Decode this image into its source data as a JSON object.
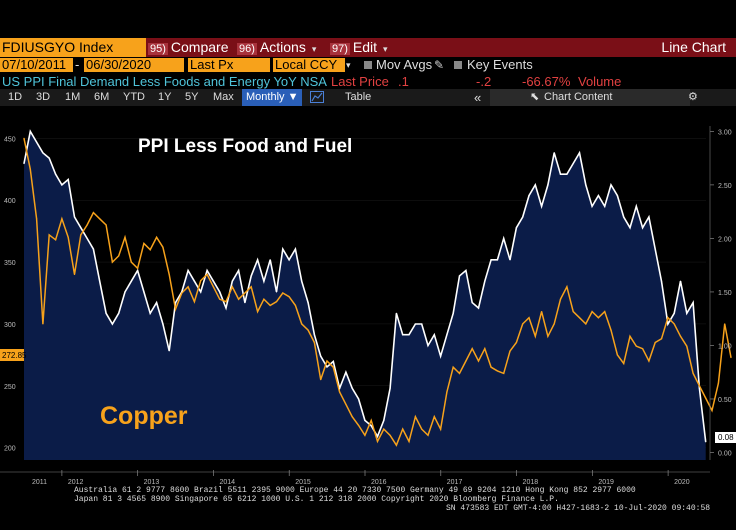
{
  "toolbar": {
    "ticker": "FDIUSGYO Index",
    "compare_num": "95)",
    "compare": "Compare",
    "actions_num": "96)",
    "actions": "Actions",
    "edit_num": "97)",
    "edit": "Edit",
    "chart_type": "Line Chart"
  },
  "settings": {
    "start_date": "07/10/2011",
    "end_date": "06/30/2020",
    "price_field": "Last Px",
    "currency": "Local CCY",
    "mov_avgs": "Mov Avgs",
    "key_events": "Key Events"
  },
  "security": {
    "description": "US PPI Final Demand Less Foods and Energy YoY NSA",
    "last_price_label": "Last Price",
    "last_price": ".1",
    "change": "-.2",
    "change_pct": "-66.67%",
    "volume_label": "Volume"
  },
  "periods": [
    "1D",
    "3D",
    "1M",
    "6M",
    "YTD",
    "1Y",
    "5Y",
    "Max"
  ],
  "frequency": "Monthly",
  "table_label": "Table",
  "chart_content_label": "Chart Content",
  "footer": {
    "line1": "Australia 61 2 9777 8600 Brazil 5511 2395 9000 Europe 44 20 7330 7500 Germany 49 69 9204 1210 Hong Kong 852 2977 6000",
    "line2": "Japan 81 3 4565 8900     Singapore 65 6212 1000     U.S. 1 212 318 2000         Copyright 2020 Bloomberg Finance L.P.",
    "line3": "SN 473583 EDT  GMT-4:00 H427-1683-2 10-Jul-2020 09:40:58"
  },
  "chart_data": {
    "type": "line",
    "annotations": [
      "PPI Less Food and Fuel",
      "Copper"
    ],
    "x_ticks": [
      "2011",
      "2012",
      "2013",
      "2014",
      "2015",
      "2016",
      "2017",
      "2018",
      "2019",
      "2020"
    ],
    "x_range": [
      2011.5,
      2020.5
    ],
    "left_axis": {
      "ticks": [
        200,
        250,
        300,
        350,
        400,
        450
      ],
      "range": [
        190,
        460
      ],
      "last_value_label": "272.85"
    },
    "right_axis": {
      "ticks": [
        "0.00",
        "0.50",
        "1.00",
        "1.50",
        "2.00",
        "2.50",
        "3.00"
      ],
      "range": [
        -0.07,
        3.05
      ],
      "last_value_label": "0.08"
    },
    "series": [
      {
        "color": "#ffffff",
        "fill": "#0b1c48",
        "axis": "right",
        "start": 2011.5,
        "step": 0.0833,
        "values": [
          2.7,
          3.0,
          2.9,
          2.8,
          2.75,
          2.6,
          2.5,
          2.55,
          2.2,
          2.1,
          2.0,
          1.9,
          1.6,
          1.3,
          1.2,
          1.3,
          1.5,
          1.6,
          1.7,
          1.5,
          1.3,
          1.4,
          1.2,
          0.95,
          1.4,
          1.5,
          1.7,
          1.6,
          1.5,
          1.7,
          1.6,
          1.5,
          1.35,
          1.6,
          1.7,
          1.4,
          1.65,
          1.8,
          1.6,
          1.8,
          1.5,
          1.9,
          1.8,
          1.9,
          1.6,
          1.4,
          1.1,
          0.9,
          0.8,
          0.85,
          0.6,
          0.75,
          0.6,
          0.5,
          0.3,
          0.25,
          0.15,
          0.3,
          0.6,
          1.3,
          1.1,
          1.1,
          1.2,
          1.2,
          1.0,
          1.1,
          0.9,
          1.1,
          1.3,
          1.65,
          1.7,
          1.4,
          1.35,
          1.6,
          1.8,
          1.8,
          2.0,
          1.8,
          2.1,
          2.2,
          2.4,
          2.5,
          2.3,
          2.5,
          2.8,
          2.6,
          2.6,
          2.7,
          2.8,
          2.5,
          2.3,
          2.4,
          2.3,
          2.5,
          2.4,
          2.2,
          2.1,
          2.3,
          2.1,
          2.2,
          1.9,
          1.6,
          1.2,
          1.3,
          1.6,
          1.3,
          1.4,
          0.6,
          0.1
        ]
      },
      {
        "color": "#f7a21b",
        "axis": "left",
        "start": 2011.5,
        "step": 0.0833,
        "values": [
          450,
          425,
          385,
          300,
          372,
          368,
          385,
          370,
          340,
          372,
          380,
          390,
          385,
          380,
          350,
          355,
          370,
          350,
          345,
          365,
          360,
          370,
          362,
          340,
          312,
          325,
          330,
          318,
          335,
          340,
          330,
          320,
          318,
          330,
          320,
          325,
          330,
          310,
          320,
          315,
          318,
          325,
          322,
          315,
          300,
          295,
          285,
          255,
          270,
          265,
          245,
          235,
          225,
          218,
          210,
          222,
          205,
          215,
          210,
          202,
          215,
          205,
          225,
          215,
          210,
          225,
          215,
          245,
          265,
          260,
          270,
          280,
          270,
          280,
          265,
          262,
          260,
          278,
          285,
          300,
          305,
          290,
          310,
          290,
          300,
          320,
          330,
          310,
          305,
          300,
          310,
          305,
          310,
          295,
          275,
          268,
          290,
          282,
          280,
          270,
          285,
          288,
          305,
          300,
          290,
          282,
          260,
          250,
          240,
          230,
          252,
          300,
          272.85
        ]
      }
    ]
  }
}
